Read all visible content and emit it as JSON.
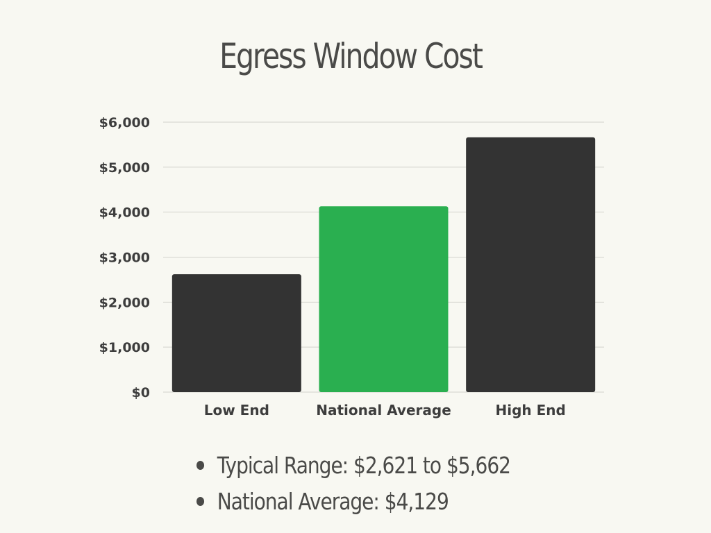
{
  "chart_data": {
    "type": "bar",
    "title": "Egress Window Cost",
    "categories": [
      "Low End",
      "National Average",
      "High End"
    ],
    "values": [
      2621,
      4129,
      5662
    ],
    "bar_colors": [
      "#333333",
      "#2aaf50",
      "#333333"
    ],
    "ylim": [
      0,
      6000
    ],
    "yticks": [
      0,
      1000,
      2000,
      3000,
      4000,
      5000,
      6000
    ],
    "ytick_labels": [
      "$0",
      "$1,000",
      "$2,000",
      "$3,000",
      "$4,000",
      "$5,000",
      "$6,000"
    ],
    "grid": true,
    "legend": "none"
  },
  "summary": {
    "items": [
      "Typical Range: $2,621 to $5,662",
      "National Average: $4,129"
    ]
  },
  "colors": {
    "background": "#f8f8f2",
    "text": "#4a4a48",
    "gridline": "#d2d2cc"
  }
}
